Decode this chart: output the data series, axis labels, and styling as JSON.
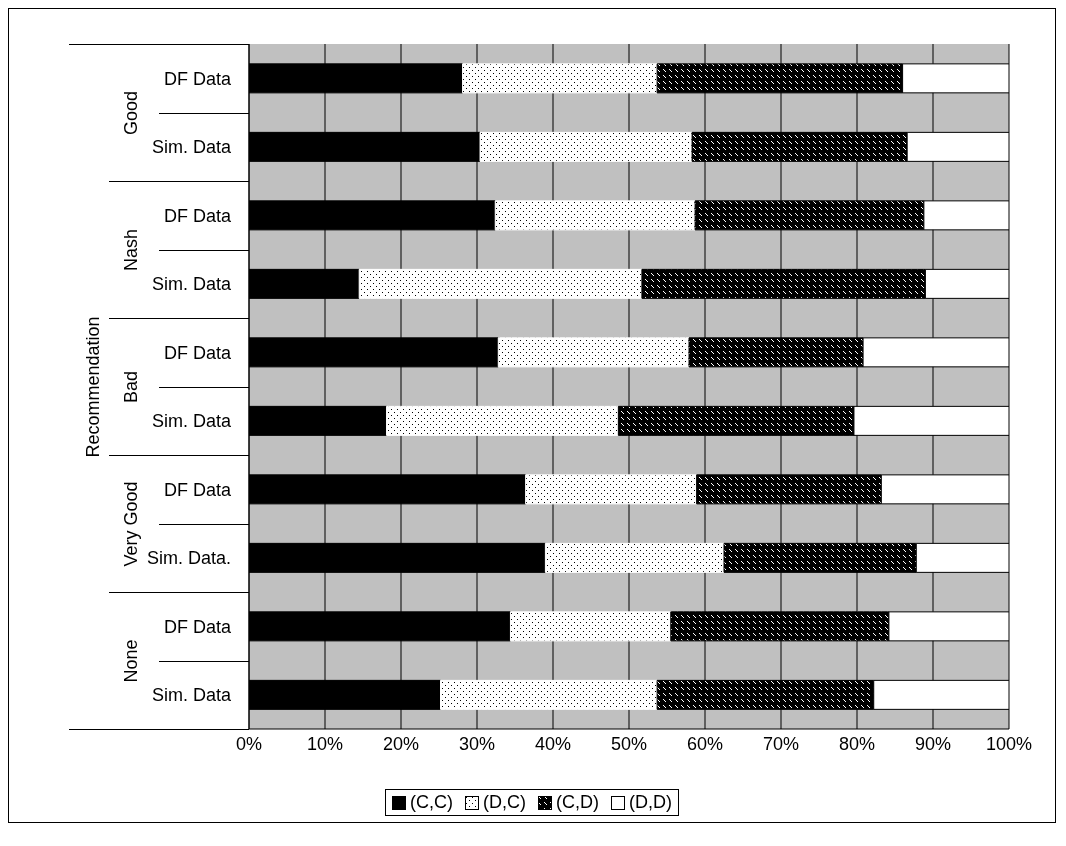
{
  "chart_data": {
    "type": "bar",
    "orientation": "horizontal",
    "stacked": true,
    "ylabel": "Recommendation",
    "categories": [
      "DF Data",
      "Sim. Data",
      "DF Data",
      "Sim. Data",
      "DF Data",
      "Sim. Data",
      "DF Data",
      "Sim. Data.",
      "DF Data",
      "Sim. Data"
    ],
    "annotations": [
      "Good",
      "Nash",
      "Bad",
      "Very Good",
      "None"
    ],
    "series": [
      {
        "name": "(C,C)",
        "color": "#000000",
        "values": [
          28.1,
          30.4,
          32.4,
          14.5,
          32.8,
          18.1,
          36.4,
          39.0,
          34.4,
          25.2
        ]
      },
      {
        "name": "(D,C)",
        "color": "#ffffff",
        "values": [
          25.6,
          27.9,
          26.3,
          37.2,
          25.1,
          30.5,
          22.5,
          23.5,
          21.1,
          28.5
        ]
      },
      {
        "name": "(C,D)",
        "color": "#000000",
        "values": [
          32.3,
          28.3,
          30.1,
          37.3,
          22.9,
          31.0,
          24.3,
          25.3,
          28.7,
          28.5
        ]
      },
      {
        "name": "(D,D)",
        "color": "#ffffff",
        "values": [
          14.0,
          13.4,
          11.2,
          11.0,
          19.2,
          20.4,
          16.8,
          12.2,
          15.8,
          17.8
        ]
      }
    ],
    "xlim": [
      0,
      100
    ],
    "xticks": [
      {
        "value": 0,
        "label": "0%"
      },
      {
        "value": 10,
        "label": "10%"
      },
      {
        "value": 20,
        "label": "20%"
      },
      {
        "value": 30,
        "label": "30%"
      },
      {
        "value": 40,
        "label": "40%"
      },
      {
        "value": 50,
        "label": "50%"
      },
      {
        "value": 60,
        "label": "60%"
      },
      {
        "value": 70,
        "label": "70%"
      },
      {
        "value": 80,
        "label": "80%"
      },
      {
        "value": 90,
        "label": "90%"
      },
      {
        "value": 100,
        "label": "100%"
      }
    ],
    "grid": "x",
    "legend": "bottom"
  }
}
